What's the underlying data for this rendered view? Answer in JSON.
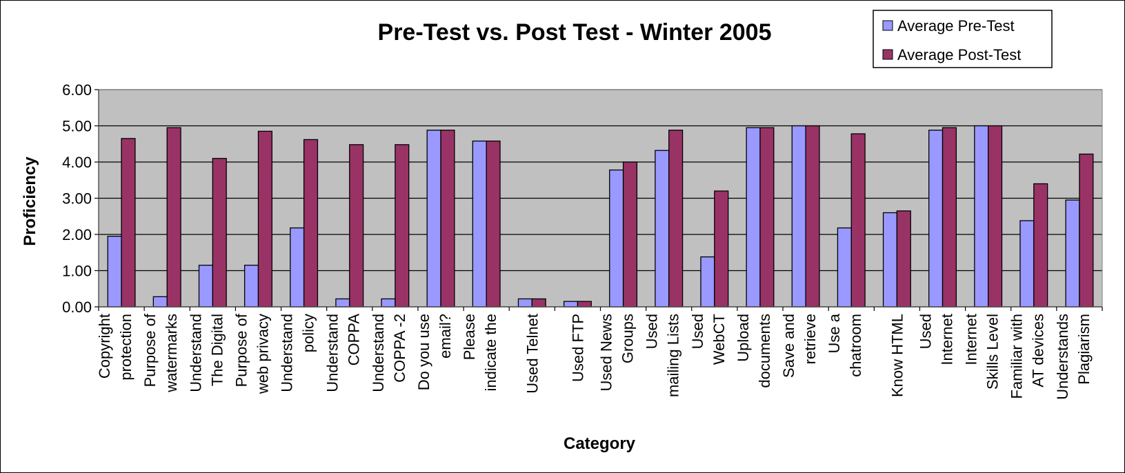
{
  "chart_data": {
    "type": "bar",
    "title": "Pre-Test vs. Post Test - Winter 2005",
    "xlabel": "Category",
    "ylabel": "Proficiency",
    "ylim": [
      0,
      6
    ],
    "yticks": [
      "0.00",
      "1.00",
      "2.00",
      "3.00",
      "4.00",
      "5.00",
      "6.00"
    ],
    "grid": true,
    "legend_position": "top-right",
    "plot_background": "#c0c0c0",
    "categories": [
      [
        "Copyright",
        "protection"
      ],
      [
        "Purpose of",
        "watermarks"
      ],
      [
        "Understand",
        "The Digital"
      ],
      [
        "Purpose of",
        "web privacy"
      ],
      [
        "Understand",
        "policy"
      ],
      [
        "Understand",
        "COPPA"
      ],
      [
        "Understand",
        "COPPA -2"
      ],
      [
        "Do you use",
        "email?"
      ],
      [
        "Please",
        "indicate the"
      ],
      [
        "Used Telnet"
      ],
      [
        "Used FTP"
      ],
      [
        "Used News",
        "Groups"
      ],
      [
        "Used",
        "mailing Lists"
      ],
      [
        "Used",
        "WebCT"
      ],
      [
        "Upload",
        "documents"
      ],
      [
        "Save and",
        "retrieve"
      ],
      [
        "Use a",
        "chatroom"
      ],
      [
        "Know HTML"
      ],
      [
        "Used",
        "Internet"
      ],
      [
        "Internet",
        "Skills Level"
      ],
      [
        "Familiar with",
        "AT devices"
      ],
      [
        "Understands",
        "Plagiarism"
      ]
    ],
    "series": [
      {
        "name": "Average Pre-Test",
        "color": "#9999ff",
        "values": [
          1.95,
          0.28,
          1.15,
          1.15,
          2.18,
          0.22,
          0.22,
          4.88,
          4.58,
          0.22,
          0.15,
          3.78,
          4.32,
          1.38,
          4.95,
          5.0,
          2.18,
          2.6,
          4.88,
          5.0,
          2.38,
          2.95
        ]
      },
      {
        "name": "Average Post-Test",
        "color": "#993366",
        "values": [
          4.65,
          4.95,
          4.1,
          4.85,
          4.62,
          4.48,
          4.48,
          4.88,
          4.58,
          0.22,
          0.15,
          4.0,
          4.88,
          3.2,
          4.95,
          5.0,
          4.78,
          2.65,
          4.95,
          5.0,
          3.4,
          4.22
        ]
      }
    ]
  }
}
